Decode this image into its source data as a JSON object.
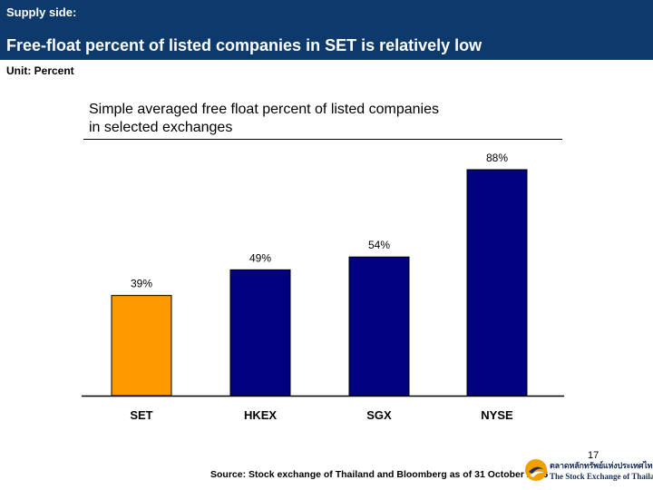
{
  "header": {
    "kicker": "Supply side:",
    "title": "Free-float percent of listed companies in SET is relatively low"
  },
  "unit_label": "Unit: Percent",
  "colors": {
    "header_bg": "#0e3a6b",
    "highlight_bar": "#ff9900",
    "bar": "#000080"
  },
  "chart_data": {
    "type": "bar",
    "title": "Simple averaged free float percent of listed companies\nin selected exchanges",
    "categories": [
      "SET",
      "HKEX",
      "SGX",
      "NYSE"
    ],
    "values": [
      39,
      49,
      54,
      88
    ],
    "data_labels": [
      "39%",
      "49%",
      "54%",
      "88%"
    ],
    "highlight": "SET",
    "xlabel": "",
    "ylabel": "",
    "ylim": [
      0,
      100
    ],
    "grid": false
  },
  "footer": {
    "source": "Source: Stock exchange of Thailand and Bloomberg as of 31 October 2006",
    "page_number": "17",
    "logo_thai": "ตลาดหลักทรัพย์แห่งประเทศไทย",
    "logo_eng": "The Stock Exchange of Thailand"
  }
}
